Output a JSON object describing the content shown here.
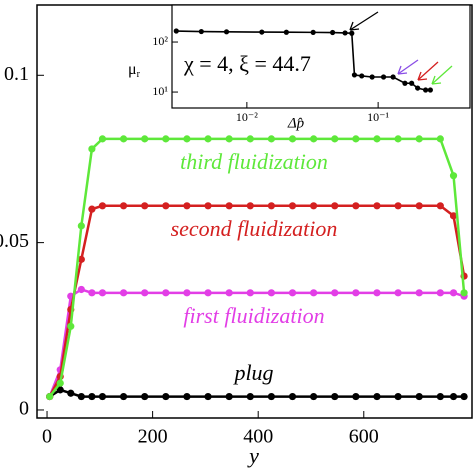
{
  "chart_data": [
    {
      "type": "line",
      "x_label": "y",
      "x": [
        5,
        25,
        45,
        65,
        85,
        105,
        145,
        185,
        225,
        265,
        305,
        345,
        385,
        425,
        465,
        505,
        545,
        585,
        625,
        665,
        705,
        745,
        770,
        790
      ],
      "series": [
        {
          "name": "plug",
          "color": "#000000",
          "values": [
            0.004,
            0.006,
            0.005,
            0.004,
            0.004,
            0.004,
            0.004,
            0.004,
            0.004,
            0.004,
            0.004,
            0.004,
            0.004,
            0.004,
            0.004,
            0.004,
            0.004,
            0.004,
            0.004,
            0.004,
            0.004,
            0.004,
            0.004,
            0.004
          ]
        },
        {
          "name": "first fluidization",
          "color": "#e23ee6",
          "values": [
            0.004,
            0.012,
            0.034,
            0.036,
            0.035,
            0.035,
            0.035,
            0.035,
            0.035,
            0.035,
            0.035,
            0.035,
            0.035,
            0.035,
            0.035,
            0.035,
            0.035,
            0.035,
            0.035,
            0.035,
            0.035,
            0.035,
            0.035,
            0.034
          ]
        },
        {
          "name": "second fluidization",
          "color": "#d42020",
          "values": [
            0.004,
            0.01,
            0.03,
            0.045,
            0.06,
            0.061,
            0.061,
            0.061,
            0.061,
            0.061,
            0.061,
            0.061,
            0.061,
            0.061,
            0.061,
            0.061,
            0.061,
            0.061,
            0.061,
            0.061,
            0.061,
            0.061,
            0.058,
            0.04
          ]
        },
        {
          "name": "third fluidization",
          "color": "#5ee83a",
          "values": [
            0.004,
            0.008,
            0.025,
            0.055,
            0.078,
            0.081,
            0.081,
            0.081,
            0.081,
            0.081,
            0.081,
            0.081,
            0.081,
            0.081,
            0.081,
            0.081,
            0.081,
            0.081,
            0.081,
            0.081,
            0.081,
            0.081,
            0.07,
            0.035
          ]
        }
      ],
      "xlim": [
        -19,
        805
      ],
      "xticks": [
        0,
        200,
        400,
        600
      ],
      "ylim": [
        -0.0024,
        0.121
      ],
      "yticks": [
        0,
        0.05,
        0.1
      ]
    },
    {
      "type": "line",
      "log_scale": true,
      "x_label": "Δp̂",
      "y_label": "μ",
      "y_label_sub": "r",
      "annotation": "χ = 4,  ξ = 44.7",
      "x": [
        0.0029,
        0.0045,
        0.007,
        0.013,
        0.02,
        0.032,
        0.045,
        0.056,
        0.063,
        0.066,
        0.075,
        0.09,
        0.11,
        0.13,
        0.16,
        0.18,
        0.2,
        0.23,
        0.25
      ],
      "series": [
        {
          "name": "μr",
          "color": "#000000",
          "values": [
            166,
            162,
            160,
            158,
            157,
            156,
            155,
            152,
            150,
            22,
            21,
            20,
            20,
            20,
            15,
            15,
            12,
            11,
            11
          ]
        }
      ],
      "xlim": [
        0.00269,
        0.501
      ],
      "xticks": [
        {
          "value": 0.01,
          "label": "10⁻²"
        },
        {
          "value": 0.1,
          "label": "10⁻¹"
        }
      ],
      "ylim": [
        4.8,
        550
      ],
      "yticks": [
        {
          "value": 10,
          "label": "10¹"
        },
        {
          "value": 100,
          "label": "10²"
        }
      ]
    }
  ]
}
